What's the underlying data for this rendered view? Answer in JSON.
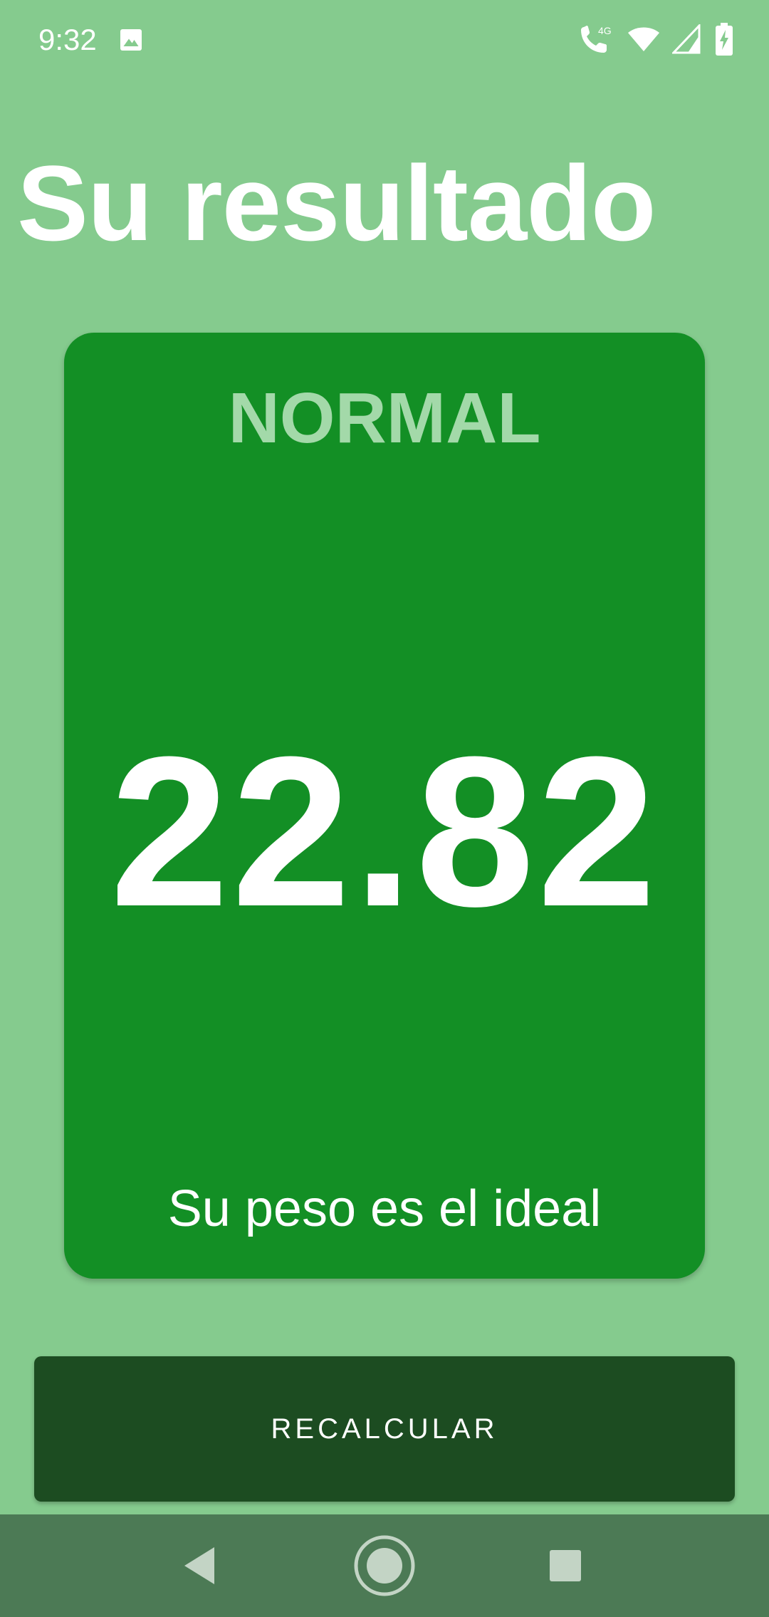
{
  "status_bar": {
    "time": "9:32",
    "icons": [
      "gallery-icon",
      "wifi-call-icon",
      "wifi-icon",
      "signal-icon",
      "battery-charging-icon"
    ],
    "network_label": "4G"
  },
  "page": {
    "title": "Su resultado"
  },
  "result": {
    "category": "NORMAL",
    "value": "22.82",
    "message": "Su peso es el ideal"
  },
  "actions": {
    "recalculate_label": "RECALCULAR"
  },
  "nav_bar": {
    "icons": [
      "back-icon",
      "home-icon",
      "recents-icon"
    ]
  },
  "colors": {
    "background": "#85cb8e",
    "card": "#138f25",
    "category_text": "#a3d9a9",
    "button": "#1c4c21",
    "nav_bar": "#4c7a55"
  }
}
